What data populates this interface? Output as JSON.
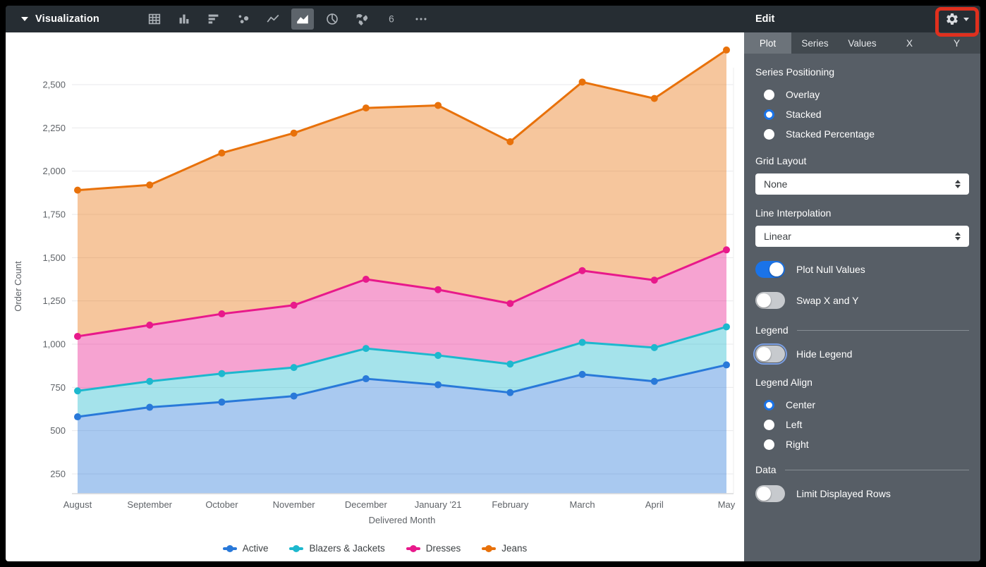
{
  "window": {
    "title_bar": {
      "label": "Visualization"
    }
  },
  "toolbar": {
    "icons": [
      {
        "name": "table",
        "selected": false
      },
      {
        "name": "column-chart",
        "selected": false
      },
      {
        "name": "bar-chart",
        "selected": false
      },
      {
        "name": "scatter-chart",
        "selected": false
      },
      {
        "name": "line-chart",
        "selected": false
      },
      {
        "name": "area-chart",
        "selected": true
      },
      {
        "name": "pie-chart",
        "selected": false
      },
      {
        "name": "map-chart",
        "selected": false
      },
      {
        "name": "single-value",
        "selected": false
      },
      {
        "name": "more-options",
        "selected": false
      }
    ]
  },
  "edit_panel": {
    "title": "Edit",
    "annotation": {
      "highlight_target": "settings-gear",
      "color": "#e0301e"
    },
    "tabs": [
      {
        "label": "Plot",
        "active": true
      },
      {
        "label": "Series",
        "active": false
      },
      {
        "label": "Values",
        "active": false
      },
      {
        "label": "X",
        "active": false
      },
      {
        "label": "Y",
        "active": false
      }
    ],
    "series_positioning": {
      "label": "Series Positioning",
      "options": [
        {
          "label": "Overlay",
          "selected": false
        },
        {
          "label": "Stacked",
          "selected": true
        },
        {
          "label": "Stacked Percentage",
          "selected": false
        }
      ]
    },
    "grid_layout": {
      "label": "Grid Layout",
      "value": "None"
    },
    "line_interpolation": {
      "label": "Line Interpolation",
      "value": "Linear"
    },
    "plot_null_values": {
      "label": "Plot Null Values",
      "on": true
    },
    "swap_x_y": {
      "label": "Swap X and Y",
      "on": false
    },
    "legend_section": {
      "label": "Legend"
    },
    "hide_legend": {
      "label": "Hide Legend",
      "on": false,
      "focused": true
    },
    "legend_align": {
      "label": "Legend Align",
      "options": [
        {
          "label": "Center",
          "selected": true
        },
        {
          "label": "Left",
          "selected": false
        },
        {
          "label": "Right",
          "selected": false
        }
      ]
    },
    "data_section": {
      "label": "Data"
    },
    "limit_displayed_rows": {
      "label": "Limit Displayed Rows",
      "on": false
    }
  },
  "chart_data": {
    "type": "area",
    "stacking": "stacked",
    "categories": [
      "August",
      "September",
      "October",
      "November",
      "December",
      "January '21",
      "February",
      "March",
      "April",
      "May"
    ],
    "series": [
      {
        "name": "Active",
        "color": "#2979d9",
        "values": [
          580,
          635,
          665,
          700,
          800,
          765,
          720,
          825,
          785,
          880
        ]
      },
      {
        "name": "Blazers & Jackets",
        "color": "#1db8ce",
        "values": [
          150,
          150,
          165,
          165,
          175,
          170,
          165,
          185,
          195,
          220
        ]
      },
      {
        "name": "Dresses",
        "color": "#e8198b",
        "values": [
          315,
          325,
          345,
          360,
          400,
          380,
          350,
          415,
          390,
          445
        ]
      },
      {
        "name": "Jeans",
        "color": "#e8710a",
        "values": [
          845,
          810,
          930,
          995,
          990,
          1065,
          935,
          1090,
          1050,
          1155
        ]
      }
    ],
    "stacked_totals": [
      1890,
      1920,
      2105,
      2220,
      2365,
      2380,
      2170,
      2515,
      2420,
      2700
    ],
    "xlabel": "Delivered Month",
    "ylabel": "Order Count",
    "yticks": [
      250,
      500,
      750,
      1000,
      1250,
      1500,
      1750,
      2000,
      2250,
      2500
    ],
    "ylim": [
      135,
      2745
    ],
    "grid": true,
    "legend_position": "bottom-center"
  }
}
